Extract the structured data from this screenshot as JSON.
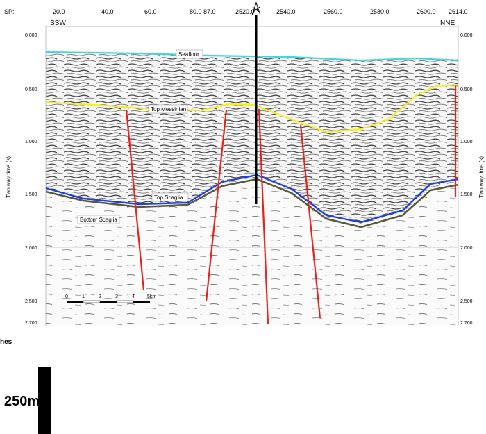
{
  "section": {
    "sp_label": "SP:",
    "sp_ticks": [
      "20.0",
      "40.0",
      "60.0",
      "80.0",
      "87.0",
      "2520.0",
      "2540.0",
      "2560.0",
      "2580.0",
      "2600.0",
      "2614.0"
    ],
    "left_direction": "SSW",
    "right_direction": "NNE",
    "y_axis_label": "Two way time (s)",
    "y_ticks": [
      "0.000",
      "0.500",
      "1.000",
      "1.500",
      "2.000",
      "2.500",
      "2.700"
    ],
    "horizons": {
      "seafloor": "Seafloor",
      "top_messinian": "Top Messinian",
      "top_scaglia": "Top Scaglia",
      "bottom_scaglia": "Bottom Scaglia"
    },
    "scale_ticks": [
      "0",
      "1",
      "2",
      "3",
      "4",
      "5km"
    ],
    "colors": {
      "seafloor": "#3fd6dc",
      "top_messinian": "#f2ef26",
      "top_scaglia": "#1f3fe0",
      "bottom_scaglia": "#5a5a3a",
      "faults": "#e8231b",
      "well": "#000000"
    },
    "well_icon": "well-derrick-icon"
  },
  "caption_fragment": "hes",
  "vertical_scale_label": "250m"
}
